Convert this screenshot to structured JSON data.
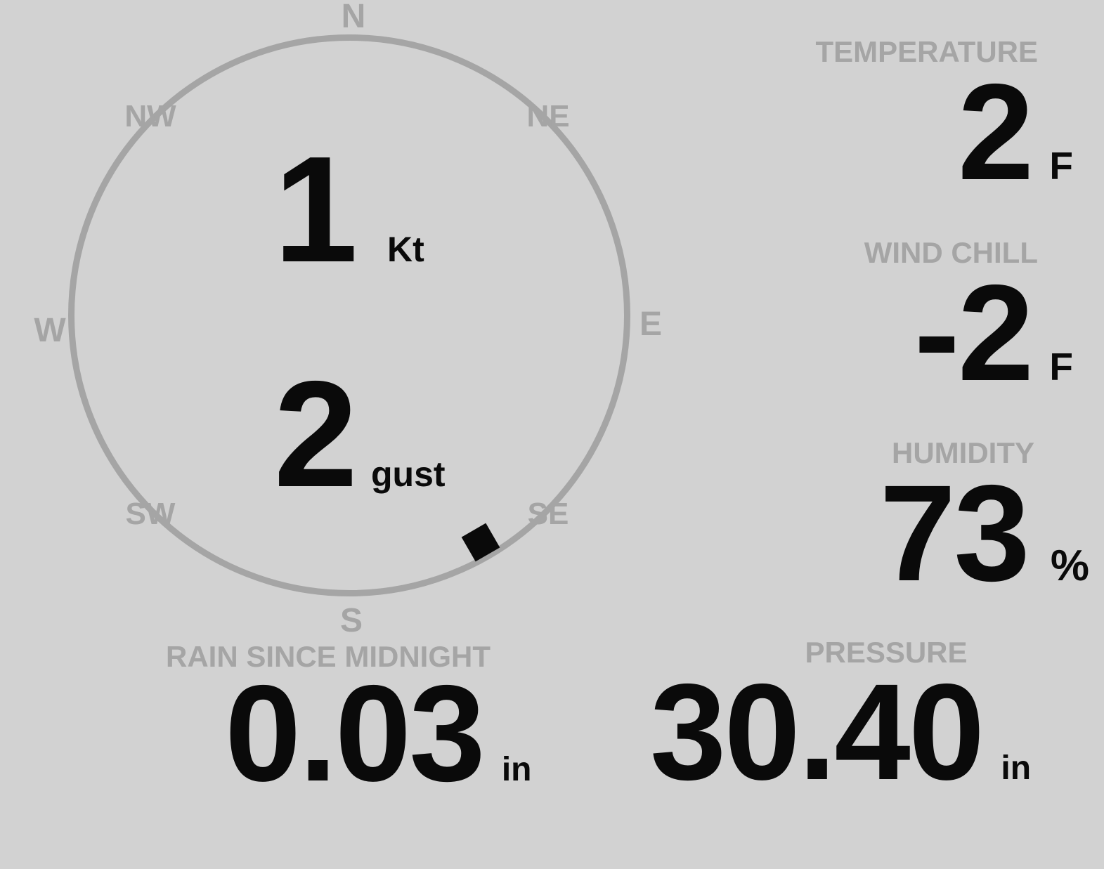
{
  "theme": {
    "background": "#d2d2d2",
    "muted_gray": "#a5a5a5",
    "ink_black": "#0a0a0a"
  },
  "compass": {
    "cardinals": {
      "n": "N",
      "e": "E",
      "s": "S",
      "w": "W"
    },
    "intercardinals": {
      "ne": "NE",
      "nw": "NW",
      "se": "SE",
      "sw": "SW"
    },
    "wind_speed": {
      "value": "1",
      "unit": "Kt"
    },
    "wind_gust": {
      "value": "2",
      "unit": "gust"
    },
    "direction_degrees": 150
  },
  "metrics": {
    "temperature": {
      "label": "TEMPERATURE",
      "value": "2",
      "unit": "F"
    },
    "wind_chill": {
      "label": "WIND CHILL",
      "value": "-2",
      "unit": "F"
    },
    "humidity": {
      "label": "HUMIDITY",
      "value": "73",
      "unit": "%"
    },
    "rain_since_midnight": {
      "label": "RAIN SINCE MIDNIGHT",
      "value": "0.03",
      "unit": "in"
    },
    "pressure": {
      "label": "PRESSURE",
      "value": "30.40",
      "unit": "in"
    }
  }
}
